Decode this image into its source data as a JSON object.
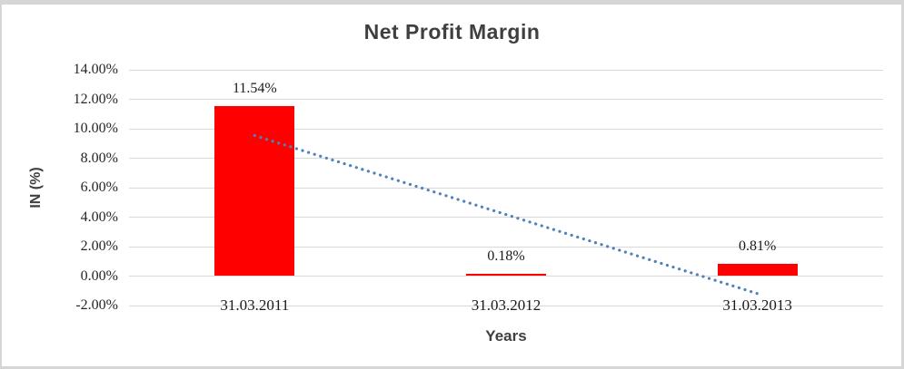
{
  "chart_data": {
    "type": "bar",
    "title": "Net Profit Margin",
    "xlabel": "Years",
    "ylabel": "IN (%)",
    "categories": [
      "31.03.2011",
      "31.03.2012",
      "31.03.2013"
    ],
    "series": [
      {
        "name": "Net Profit Margin",
        "values": [
          11.54,
          0.18,
          0.81
        ]
      }
    ],
    "data_labels": [
      "11.54%",
      "0.18%",
      "0.81%"
    ],
    "y_ticks": [
      {
        "value": 14,
        "label": "14.00%"
      },
      {
        "value": 12,
        "label": "12.00%"
      },
      {
        "value": 10,
        "label": "10.00%"
      },
      {
        "value": 8,
        "label": "8.00%"
      },
      {
        "value": 6,
        "label": "6.00%"
      },
      {
        "value": 4,
        "label": "4.00%"
      },
      {
        "value": 2,
        "label": "2.00%"
      },
      {
        "value": 0,
        "label": "0.00%"
      },
      {
        "value": -2,
        "label": "-2.00%"
      }
    ],
    "ylim": [
      -2,
      14
    ],
    "grid": true,
    "legend": "none",
    "bar_color": "#ff0000",
    "gridline_color": "#d9d9d9",
    "trendline": {
      "type": "linear",
      "style": "dotted",
      "color": "#4f81bd",
      "start_value": 9.54,
      "end_value": -1.19
    }
  }
}
